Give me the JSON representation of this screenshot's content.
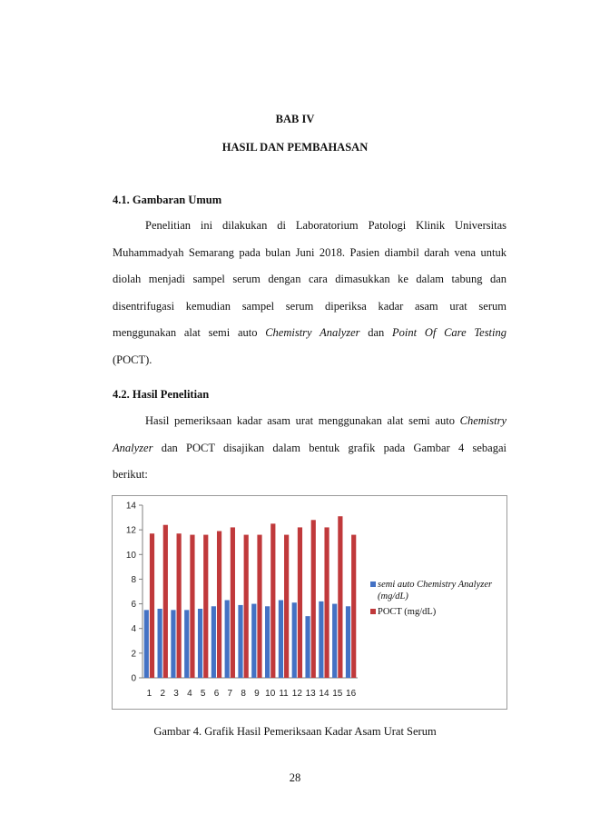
{
  "chapter": "BAB IV",
  "chapter_title": "HASIL DAN PEMBAHASAN",
  "section1": {
    "heading": "4.1. Gambaran Umum",
    "lines": [
      "Penelitian ini dilakukan di Laboratorium Patologi Klinik Universitas",
      "Muhammadyah Semarang pada bulan Juni 2018. Pasien diambil darah vena untuk",
      "diolah menjadi sampel serum dengan cara dimasukkan ke dalam tabung dan",
      "disentrifugasi kemudian sampel serum diperiksa kadar asam urat serum"
    ],
    "line5_prefix": "menggunakan alat semi auto ",
    "line5_italic1": "Chemistry Analyzer",
    "line5_mid": " dan ",
    "line5_italic2": "Point Of Care Testing",
    "line6": "(POCT)."
  },
  "section2": {
    "heading": "4.2. Hasil Penelitian",
    "line1_prefix": "Hasil pemeriksaan kadar asam urat menggunakan alat semi auto ",
    "line1_italic": "Chemistry",
    "line2_italic": "Analyzer",
    "line2_rest": " dan POCT disajikan dalam bentuk grafik pada Gambar 4  sebagai",
    "line3": "berikut:"
  },
  "chart_data": {
    "type": "bar",
    "categories": [
      "1",
      "2",
      "3",
      "4",
      "5",
      "6",
      "7",
      "8",
      "9",
      "10",
      "11",
      "12",
      "13",
      "14",
      "15",
      "16"
    ],
    "series": [
      {
        "name": "semi auto Chemistry Analyzer (mg/dL)",
        "name_line1": "semi auto Chemistry Analyzer",
        "name_line2": "(mg/dL)",
        "color": "#4472c4",
        "values": [
          5.5,
          5.6,
          5.5,
          5.5,
          5.6,
          5.8,
          6.3,
          5.9,
          6.0,
          5.8,
          6.3,
          6.1,
          5.0,
          6.2,
          6.0,
          5.8
        ]
      },
      {
        "name": "POCT (mg/dL)",
        "color": "#c0393b",
        "values": [
          11.7,
          12.4,
          11.7,
          11.6,
          11.6,
          11.9,
          12.2,
          11.6,
          11.6,
          12.5,
          11.6,
          12.2,
          12.8,
          12.2,
          13.1,
          11.6
        ]
      }
    ],
    "yticks": [
      "0",
      "2",
      "4",
      "6",
      "8",
      "10",
      "12",
      "14"
    ],
    "ylim": [
      0,
      14
    ],
    "legend_position": "right"
  },
  "caption": "Gambar 4. Grafik Hasil Pemeriksaan Kadar Asam Urat Serum",
  "page_number": "28"
}
